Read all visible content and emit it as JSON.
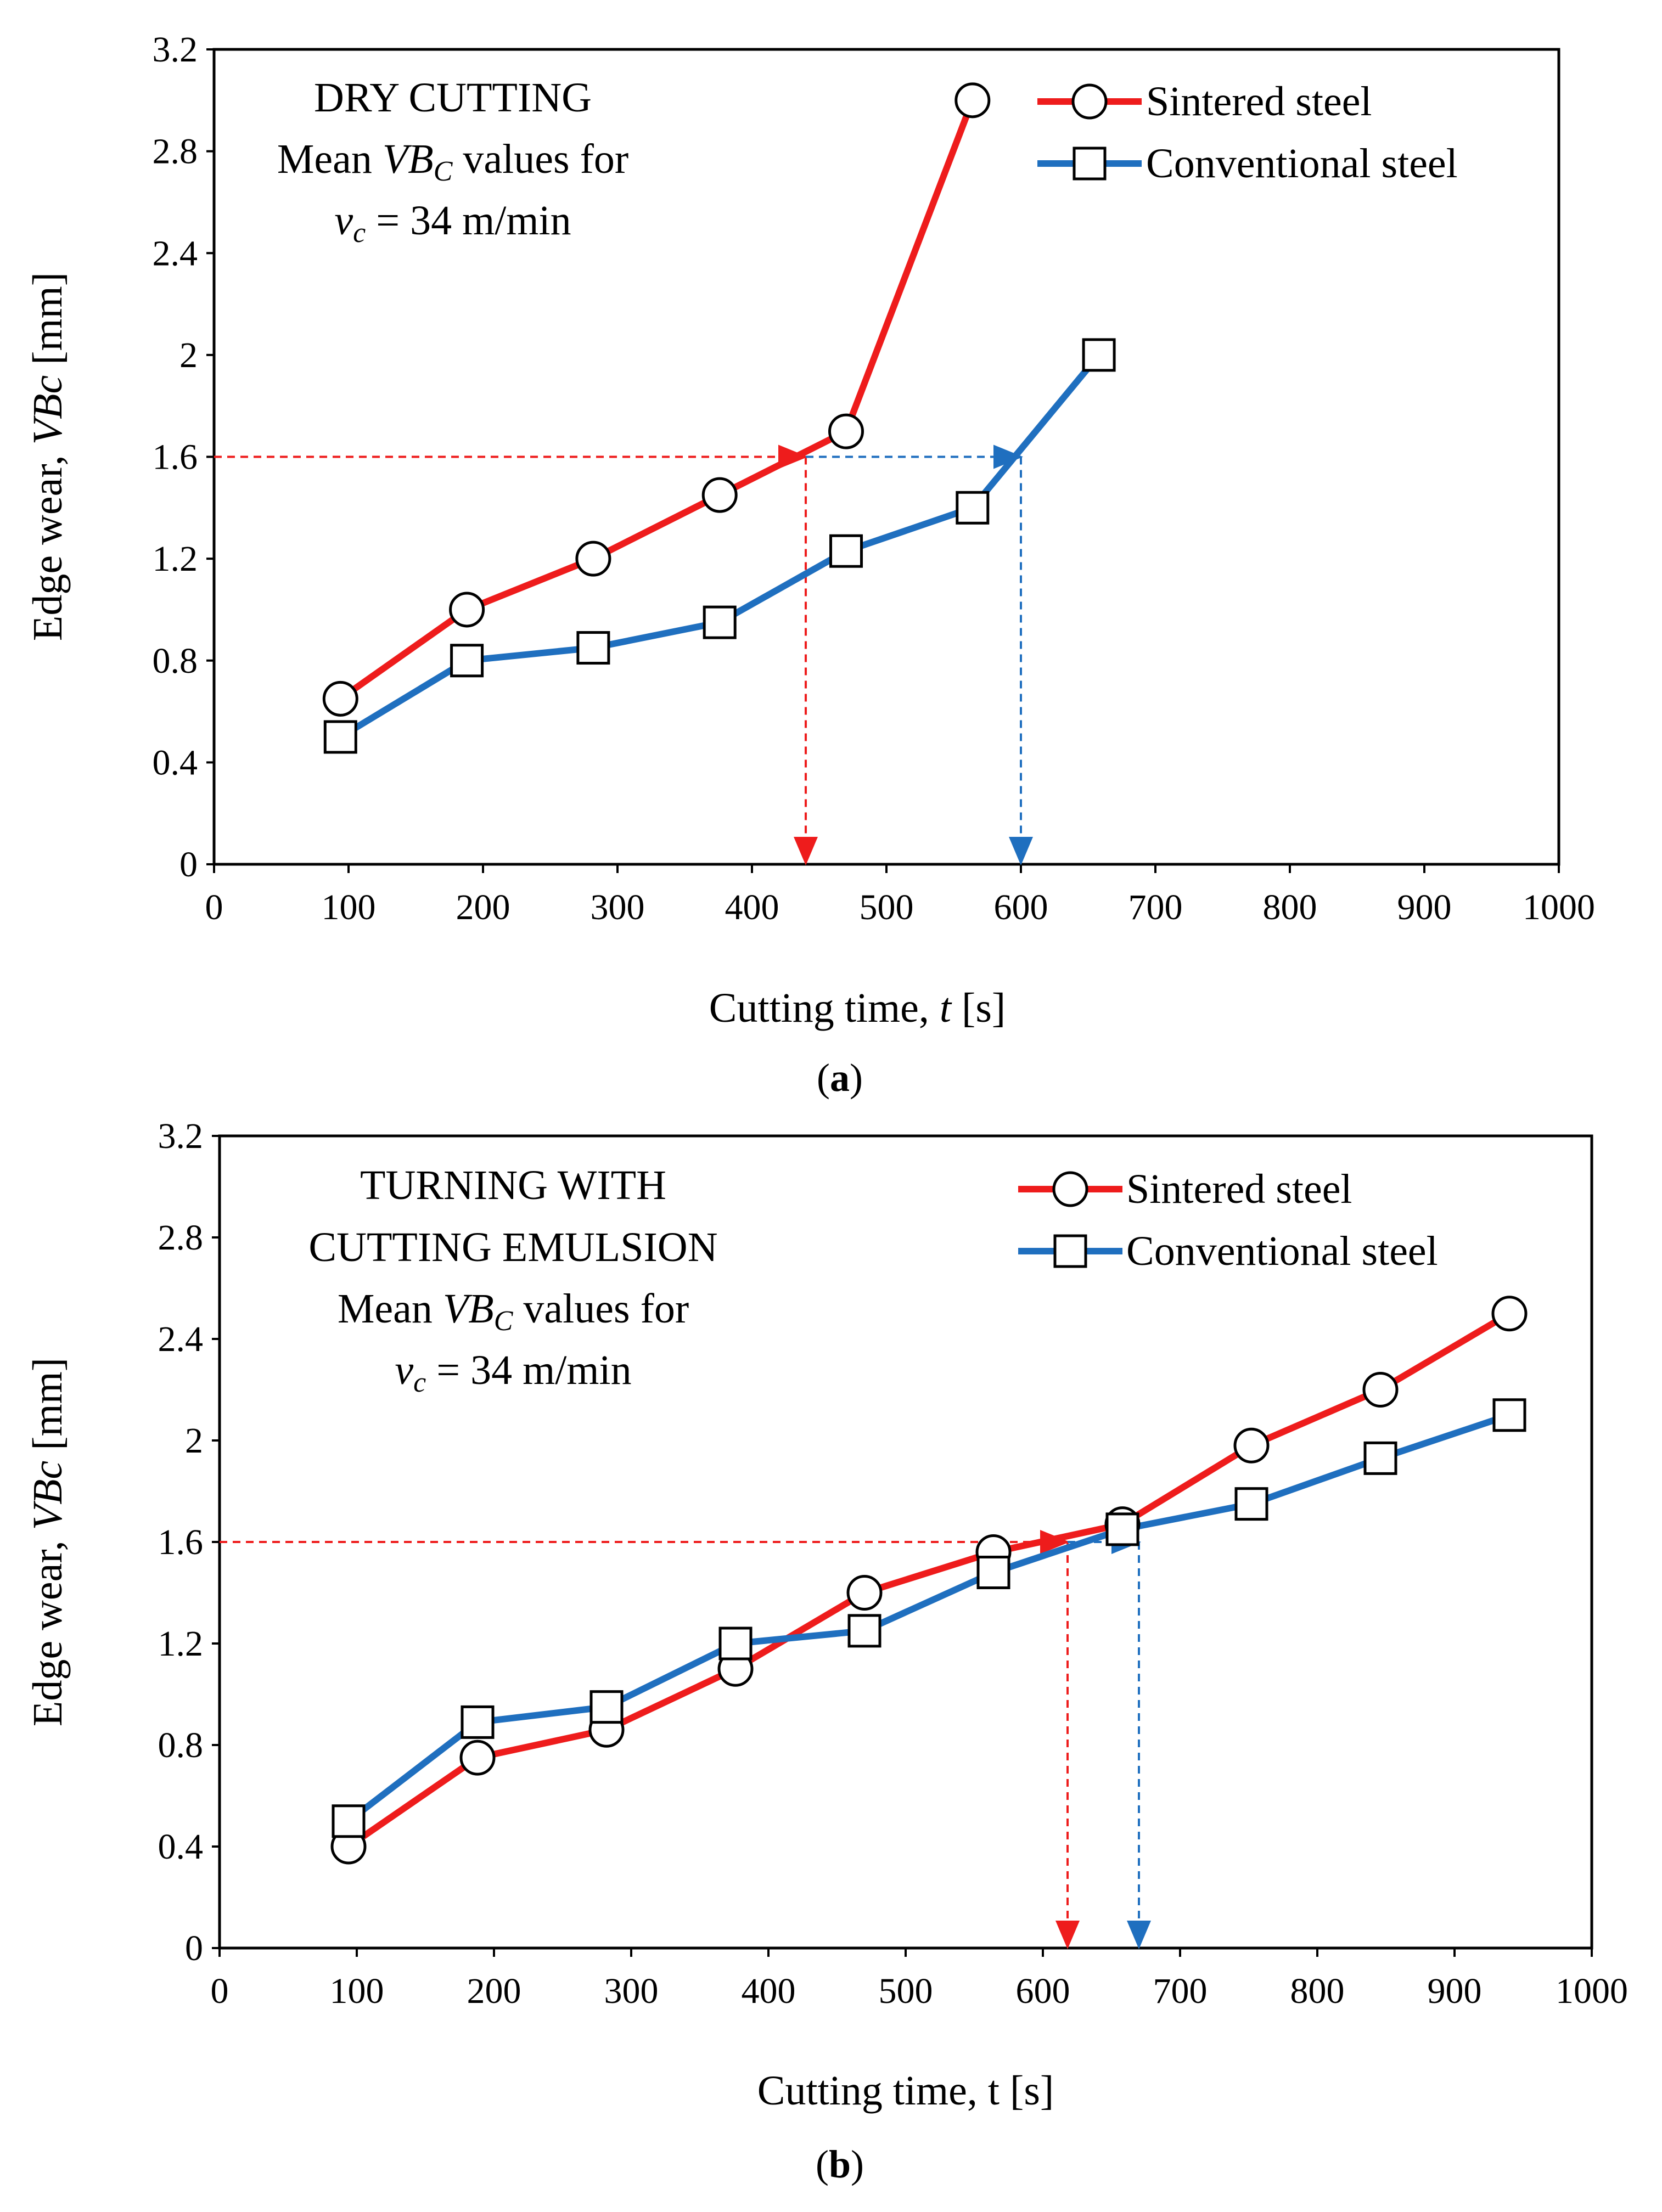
{
  "chart_data": [
    {
      "panel": "a",
      "type": "line",
      "caption_letter": "a",
      "annotation": {
        "line1": "DRY  CUTTING",
        "line2_prefix": "Mean ",
        "line2_var": "VB",
        "line2_sub": "C",
        "line2_suffix": "  values for",
        "line3_var": "v",
        "line3_sub": "c",
        "line3_suffix": " = 34 m/min"
      },
      "xlabel_main": "Cutting time, ",
      "xlabel_var": "t",
      "xlabel_unit": " [s]",
      "ylabel_main": "Edge  wear,  ",
      "ylabel_var": "VBc",
      "ylabel_unit": " [mm]",
      "xlim": [
        0,
        1000
      ],
      "ylim": [
        0,
        3.2
      ],
      "xticks": [
        "0",
        "100",
        "200",
        "300",
        "400",
        "500",
        "600",
        "700",
        "800",
        "900",
        "1000"
      ],
      "yticks": [
        "0",
        "0.4",
        "0.8",
        "1.2",
        "1.6",
        "2",
        "2.4",
        "2.8",
        "3.2"
      ],
      "series": [
        {
          "name": "Sintered steel",
          "color": "#ee1c1c",
          "marker": "circle",
          "x": [
            94,
            188,
            282,
            376,
            470,
            564
          ],
          "y": [
            0.65,
            1.0,
            1.2,
            1.45,
            1.7,
            3.0
          ]
        },
        {
          "name": "Conventional steel",
          "color": "#1f6fbf",
          "marker": "square",
          "x": [
            94,
            188,
            282,
            376,
            470,
            564,
            658
          ],
          "y": [
            0.5,
            0.8,
            0.85,
            0.95,
            1.23,
            1.4,
            2.0
          ]
        }
      ],
      "guides": [
        {
          "color": "#ee1c1c",
          "threshold": 1.6,
          "x_start": 0,
          "x_drop": 440
        },
        {
          "color": "#1f6fbf",
          "threshold": 1.6,
          "x_start": 440,
          "x_drop": 600
        }
      ]
    },
    {
      "panel": "b",
      "type": "line",
      "caption_letter": "b",
      "annotation": {
        "line1": "TURNING  WITH",
        "line1b": "CUTTING  EMULSION",
        "line2_prefix": "Mean ",
        "line2_var": "VB",
        "line2_sub": "C",
        "line2_suffix": "  values for",
        "line3_var": "v",
        "line3_sub": "c",
        "line3_suffix": " = 34 m/min"
      },
      "xlabel_main": "Cutting time, t [s]",
      "ylabel_main": "Edge  wear, ",
      "ylabel_var": "VBc",
      "ylabel_unit": " [mm]",
      "xlim": [
        0,
        1000
      ],
      "ylim": [
        0,
        3.2
      ],
      "xticks": [
        "0",
        "100",
        "200",
        "300",
        "400",
        "500",
        "600",
        "700",
        "800",
        "900",
        "1000"
      ],
      "yticks": [
        "0",
        "0.4",
        "0.8",
        "1.2",
        "1.6",
        "2",
        "2.4",
        "2.8",
        "3.2"
      ],
      "series": [
        {
          "name": "Sintered steel",
          "color": "#ee1c1c",
          "marker": "circle",
          "x": [
            94,
            188,
            282,
            376,
            470,
            564,
            658,
            752,
            846,
            940
          ],
          "y": [
            0.4,
            0.75,
            0.86,
            1.1,
            1.4,
            1.56,
            1.67,
            1.98,
            2.2,
            2.5
          ]
        },
        {
          "name": "Conventional steel",
          "color": "#1f6fbf",
          "marker": "square",
          "x": [
            94,
            188,
            282,
            376,
            470,
            564,
            658,
            752,
            846,
            940
          ],
          "y": [
            0.5,
            0.89,
            0.95,
            1.2,
            1.25,
            1.48,
            1.65,
            1.75,
            1.93,
            2.1
          ]
        }
      ],
      "guides": [
        {
          "color": "#ee1c1c",
          "threshold": 1.6,
          "x_start": 0,
          "x_drop": 618
        },
        {
          "color": "#1f6fbf",
          "threshold": 1.6,
          "x_start": 618,
          "x_drop": 670
        }
      ]
    }
  ]
}
